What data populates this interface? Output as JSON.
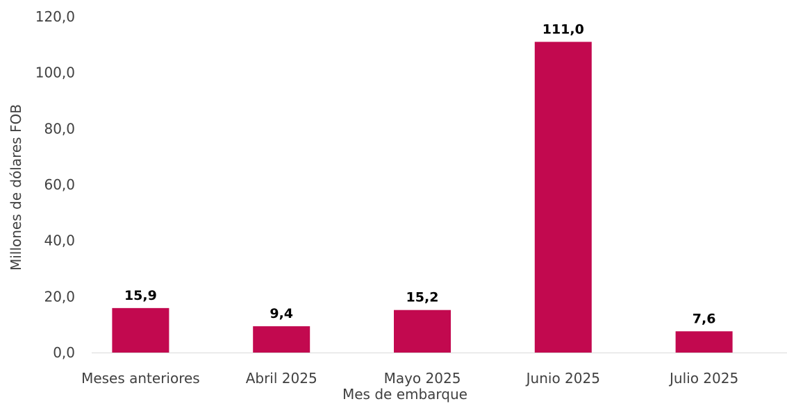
{
  "chart_data": {
    "type": "bar",
    "categories": [
      "Meses anteriores",
      "Abril 2025",
      "Mayo 2025",
      "Junio 2025",
      "Julio 2025"
    ],
    "values": [
      15.9,
      9.4,
      15.2,
      111.0,
      7.6
    ],
    "value_labels": [
      "15,9",
      "9,4",
      "15,2",
      "111,0",
      "7,6"
    ],
    "title": "",
    "xlabel": "Mes de embarque",
    "ylabel": "Millones de dólares FOB",
    "ylim": [
      0,
      120
    ],
    "yticks": [
      0,
      20,
      40,
      60,
      80,
      100,
      120
    ],
    "ytick_labels": [
      "0,0",
      "20,0",
      "40,0",
      "60,0",
      "80,0",
      "100,0",
      "120,0"
    ],
    "grid": false,
    "legend": "none",
    "bar_color": "#C2094F",
    "axis_color": "#D9D9D9"
  }
}
